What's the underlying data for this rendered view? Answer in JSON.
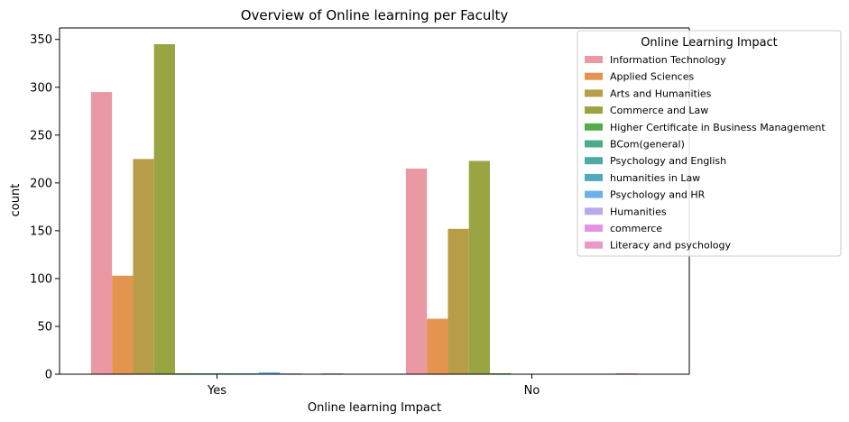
{
  "chart_data": {
    "type": "bar",
    "title": "Overview of Online learning per Faculty",
    "xlabel": "Online learning Impact",
    "ylabel": "count",
    "categories": [
      "Yes",
      "No"
    ],
    "ylim": [
      0,
      362
    ],
    "yticks": [
      0,
      50,
      100,
      150,
      200,
      250,
      300,
      350
    ],
    "grid": false,
    "legend": {
      "title": "Online Learning Impact",
      "placement": "top-right"
    },
    "series": [
      {
        "name": "Information Technology",
        "color": "#ea98a4",
        "values": [
          295,
          215
        ]
      },
      {
        "name": "Applied Sciences",
        "color": "#e3944f",
        "values": [
          103,
          58
        ]
      },
      {
        "name": "Arts and Humanities",
        "color": "#b79d48",
        "values": [
          225,
          152
        ]
      },
      {
        "name": "Commerce and Law",
        "color": "#99a443",
        "values": [
          345,
          223
        ]
      },
      {
        "name": "Higher Certificate in Business Management",
        "color": "#54ac4d",
        "values": [
          1,
          1
        ]
      },
      {
        "name": "BCom(general)",
        "color": "#4dad88",
        "values": [
          1,
          0
        ]
      },
      {
        "name": "Psychology and English",
        "color": "#4daba1",
        "values": [
          1,
          0
        ]
      },
      {
        "name": "humanities in Law",
        "color": "#51a9bd",
        "values": [
          1,
          0
        ]
      },
      {
        "name": "Psychology and HR",
        "color": "#6cb0e8",
        "values": [
          2,
          0
        ]
      },
      {
        "name": "Humanities",
        "color": "#b9a9ea",
        "values": [
          1,
          0
        ]
      },
      {
        "name": "commerce",
        "color": "#e692e4",
        "values": [
          0,
          1
        ]
      },
      {
        "name": "Literacy and psychology",
        "color": "#ea98c9",
        "values": [
          1,
          0
        ]
      }
    ]
  }
}
